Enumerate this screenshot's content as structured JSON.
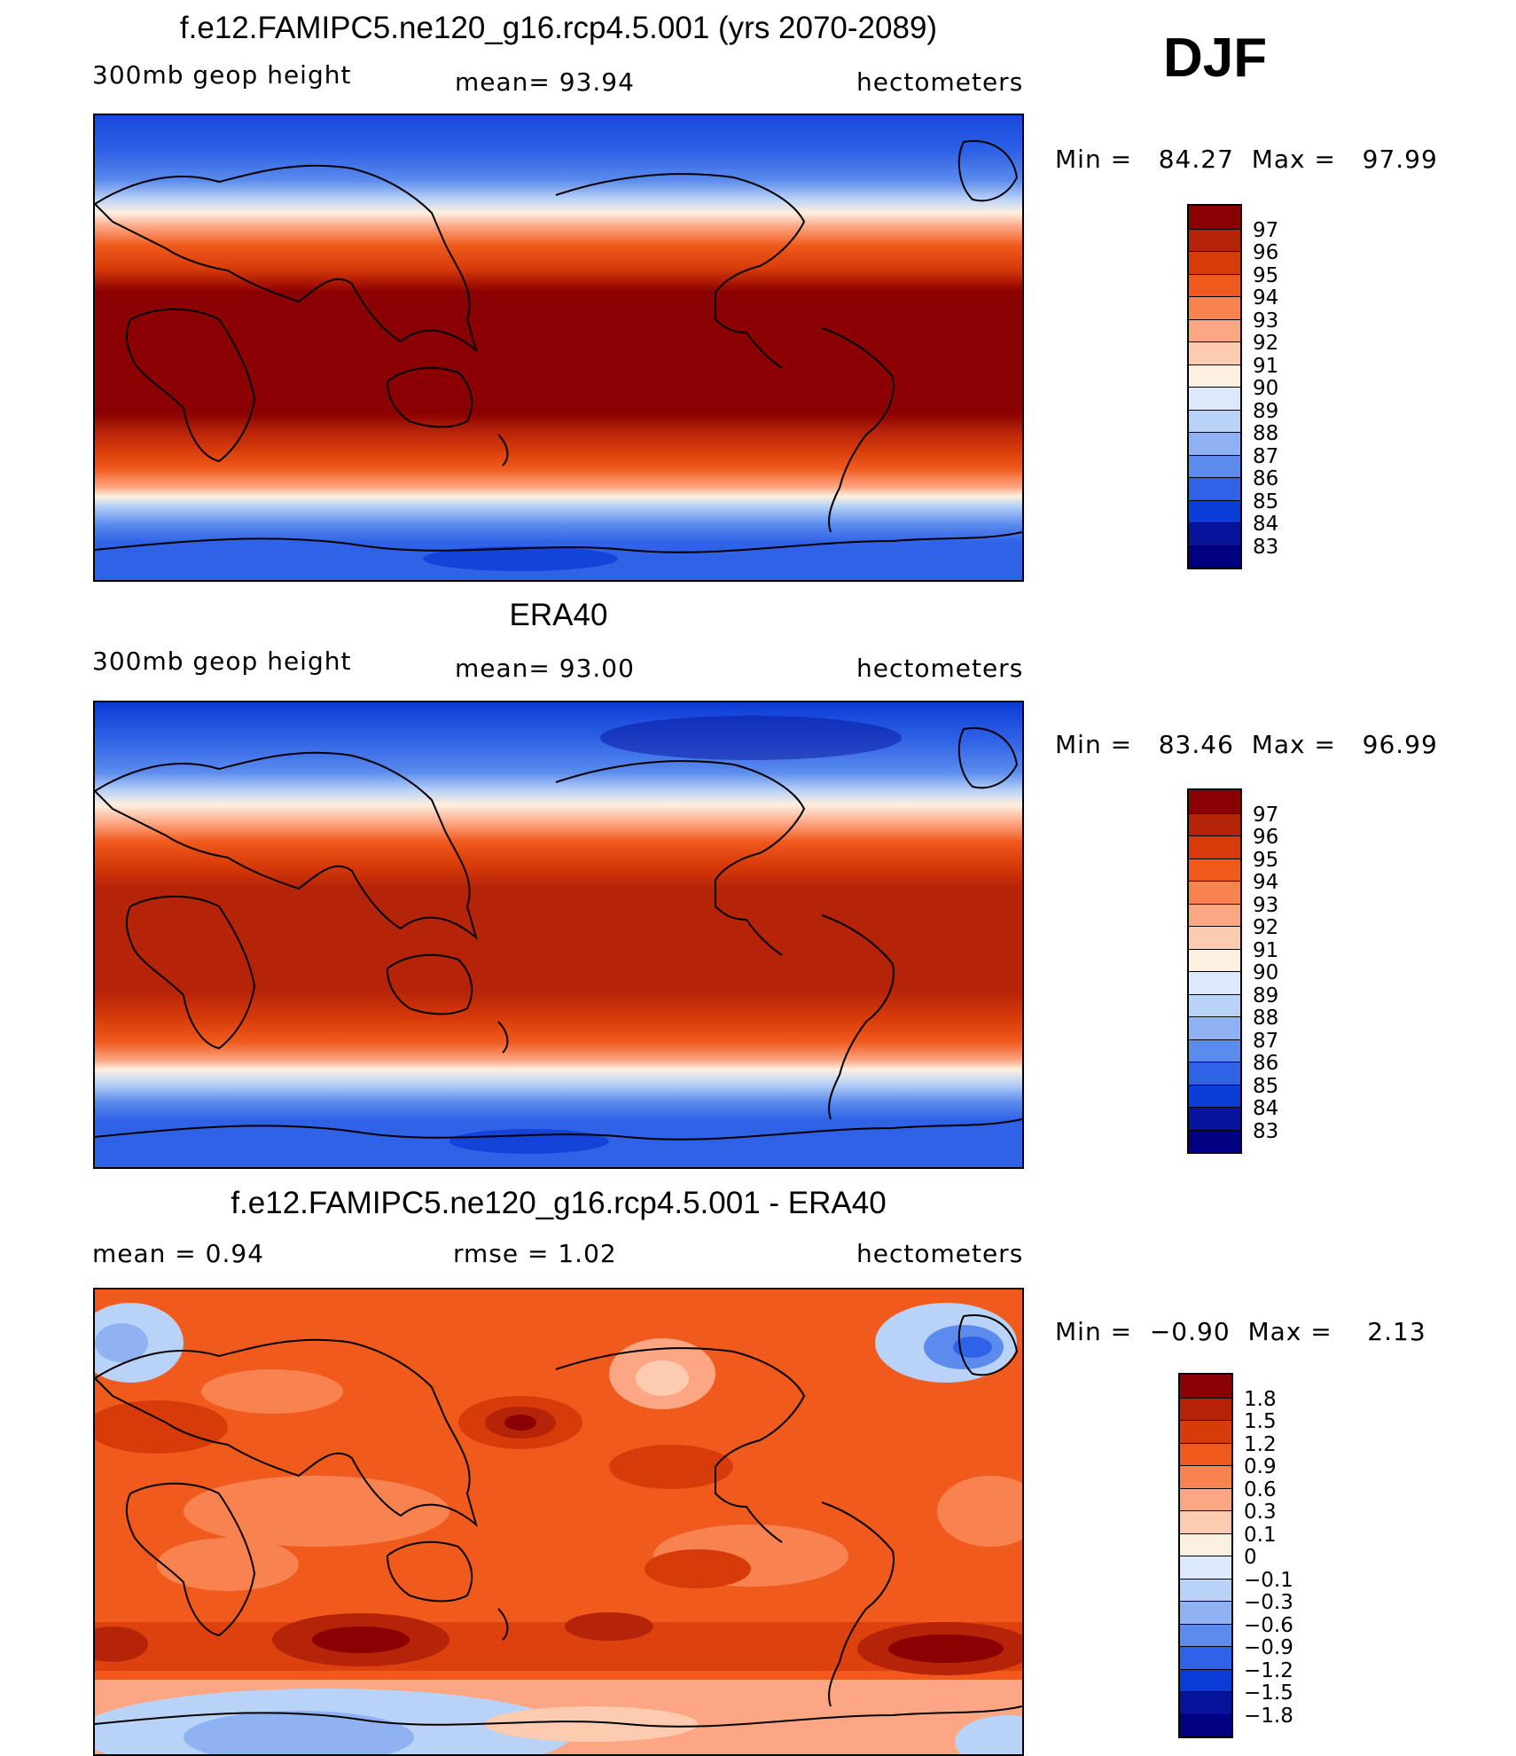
{
  "season": "DJF",
  "panels": [
    {
      "title": "f.e12.FAMIPC5.ne120_g16.rcp4.5.001 (yrs 2070-2089)",
      "left_label": "300mb geop height",
      "center_label": "mean=   93.94",
      "units": "hectometers",
      "minmax": "Min =   84.27  Max =   97.99",
      "colorbar": {
        "labels": [
          "97",
          "96",
          "95",
          "94",
          "93",
          "92",
          "91",
          "90",
          "89",
          "88",
          "87",
          "86",
          "85",
          "84",
          "83"
        ],
        "colors": [
          "#8b0000",
          "#b52308",
          "#d83b0a",
          "#f05a1c",
          "#f88250",
          "#fca684",
          "#fdcbb0",
          "#fef0e0",
          "#dce9fa",
          "#b9d2f7",
          "#8fb3f2",
          "#5b8bed",
          "#2f62e6",
          "#0c3cd6",
          "#07139b",
          "#000080"
        ]
      }
    },
    {
      "title": "ERA40",
      "left_label": "300mb geop height",
      "center_label": "mean=   93.00",
      "units": "hectometers",
      "minmax": "Min =   83.46  Max =   96.99",
      "colorbar": {
        "labels": [
          "97",
          "96",
          "95",
          "94",
          "93",
          "92",
          "91",
          "90",
          "89",
          "88",
          "87",
          "86",
          "85",
          "84",
          "83"
        ],
        "colors": [
          "#8b0000",
          "#b52308",
          "#d83b0a",
          "#f05a1c",
          "#f88250",
          "#fca684",
          "#fdcbb0",
          "#fef0e0",
          "#dce9fa",
          "#b9d2f7",
          "#8fb3f2",
          "#5b8bed",
          "#2f62e6",
          "#0c3cd6",
          "#07139b",
          "#000080"
        ]
      }
    },
    {
      "title": "f.e12.FAMIPC5.ne120_g16.rcp4.5.001 - ERA40",
      "left_label": "mean =    0.94",
      "center_label": "rmse =    1.02",
      "units": "hectometers",
      "minmax": "Min =  −0.90  Max =    2.13",
      "colorbar": {
        "labels": [
          "1.8",
          "1.5",
          "1.2",
          "0.9",
          "0.6",
          "0.3",
          "0.1",
          "0",
          "−0.1",
          "−0.3",
          "−0.6",
          "−0.9",
          "−1.2",
          "−1.5",
          "−1.8"
        ],
        "colors": [
          "#8b0000",
          "#b52308",
          "#d83b0a",
          "#f05a1c",
          "#f88250",
          "#fca684",
          "#fdcbb0",
          "#fef0e0",
          "#dce9fa",
          "#b9d2f7",
          "#8fb3f2",
          "#5b8bed",
          "#2f62e6",
          "#0c3cd6",
          "#07139b",
          "#000080"
        ]
      }
    }
  ]
}
